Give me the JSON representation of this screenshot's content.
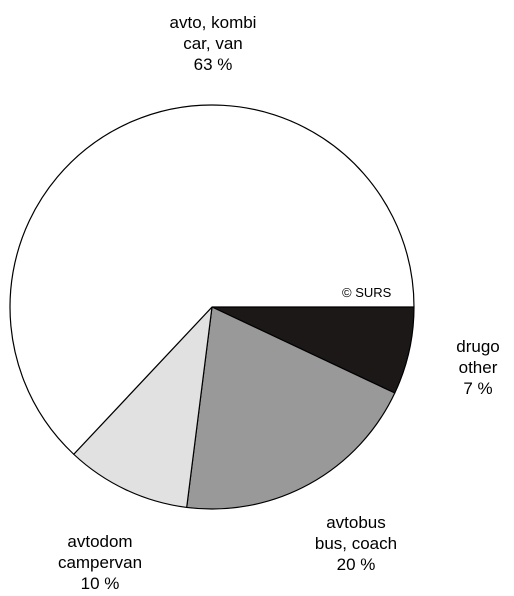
{
  "chart_data": {
    "type": "pie",
    "title": "",
    "slices": [
      {
        "label_si": "drugo",
        "label_en": "other",
        "value": 7,
        "value_text": "7 %",
        "color": "#1c1818"
      },
      {
        "label_si": "avtobus",
        "label_en": "bus, coach",
        "value": 20,
        "value_text": "20 %",
        "color": "#999999"
      },
      {
        "label_si": "avtodom",
        "label_en": "campervan",
        "value": 10,
        "value_text": "10 %",
        "color": "#e1e1e1"
      },
      {
        "label_si": "avto, kombi",
        "label_en": "car, van",
        "value": 63,
        "value_text": "63 %",
        "color": "#ffffff"
      }
    ],
    "start": "east, clockwise",
    "copyright": "© SURS"
  }
}
